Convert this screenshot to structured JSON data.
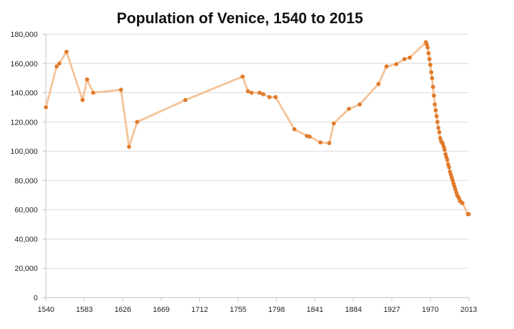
{
  "chart_data": {
    "type": "line",
    "title": "Population of Venice, 1540 to 2015",
    "xlabel": "",
    "ylabel": "",
    "xlim": [
      1540,
      2013
    ],
    "ylim": [
      0,
      180000
    ],
    "x_ticks": [
      1540,
      1583,
      1626,
      1669,
      1712,
      1755,
      1798,
      1841,
      1884,
      1927,
      1970,
      2013
    ],
    "y_ticks": [
      0,
      20000,
      40000,
      60000,
      80000,
      100000,
      120000,
      140000,
      160000,
      180000
    ],
    "y_tick_labels": [
      "0",
      "20,000",
      "40,000",
      "60,000",
      "80,000",
      "100,000",
      "120,000",
      "140,000",
      "160,000",
      "180,000"
    ],
    "grid": true,
    "line_color": "#f5c49a",
    "marker_color": "#e07b2c",
    "series": [
      {
        "name": "Population",
        "points": [
          [
            1540,
            130000
          ],
          [
            1552,
            158000
          ],
          [
            1555,
            160000
          ],
          [
            1563,
            168000
          ],
          [
            1581,
            135000
          ],
          [
            1586,
            149000
          ],
          [
            1593,
            140000
          ],
          [
            1624,
            142000
          ],
          [
            1633,
            103000
          ],
          [
            1642,
            120000
          ],
          [
            1696,
            135000
          ],
          [
            1760,
            151000
          ],
          [
            1766,
            141000
          ],
          [
            1770,
            140000
          ],
          [
            1779,
            140000
          ],
          [
            1783,
            139000
          ],
          [
            1790,
            137000
          ],
          [
            1797,
            137000
          ],
          [
            1818,
            115000
          ],
          [
            1832,
            110500
          ],
          [
            1835,
            110000
          ],
          [
            1847,
            106000
          ],
          [
            1857,
            105500
          ],
          [
            1862,
            119000
          ],
          [
            1879,
            129000
          ],
          [
            1891,
            132000
          ],
          [
            1912,
            146000
          ],
          [
            1921,
            158000
          ],
          [
            1932,
            159500
          ],
          [
            1941,
            163000
          ],
          [
            1947,
            164000
          ],
          [
            1965,
            174500
          ],
          [
            1966,
            173000
          ],
          [
            1967,
            171000
          ],
          [
            1968,
            167000
          ],
          [
            1969,
            163000
          ],
          [
            1970,
            159000
          ],
          [
            1971,
            154000
          ],
          [
            1972,
            150000
          ],
          [
            1973,
            144000
          ],
          [
            1974,
            138000
          ],
          [
            1975,
            132000
          ],
          [
            1976,
            128000
          ],
          [
            1977,
            124000
          ],
          [
            1978,
            120000
          ],
          [
            1979,
            116000
          ],
          [
            1980,
            113000
          ],
          [
            1981,
            109000
          ],
          [
            1982,
            107000
          ],
          [
            1983,
            106000
          ],
          [
            1984,
            105000
          ],
          [
            1985,
            103000
          ],
          [
            1986,
            101000
          ],
          [
            1987,
            98000
          ],
          [
            1988,
            96000
          ],
          [
            1989,
            94000
          ],
          [
            1990,
            91000
          ],
          [
            1991,
            89000
          ],
          [
            1992,
            86000
          ],
          [
            1993,
            84000
          ],
          [
            1994,
            82000
          ],
          [
            1995,
            80000
          ],
          [
            1996,
            78000
          ],
          [
            1997,
            76000
          ],
          [
            1998,
            74000
          ],
          [
            1999,
            72000
          ],
          [
            2000,
            70000
          ],
          [
            2001,
            69000
          ],
          [
            2002,
            68000
          ],
          [
            2003,
            66000
          ],
          [
            2004,
            65500
          ],
          [
            2005,
            65000
          ],
          [
            2006,
            64500
          ],
          [
            2012,
            57000
          ],
          [
            2013,
            57000
          ]
        ]
      }
    ]
  }
}
